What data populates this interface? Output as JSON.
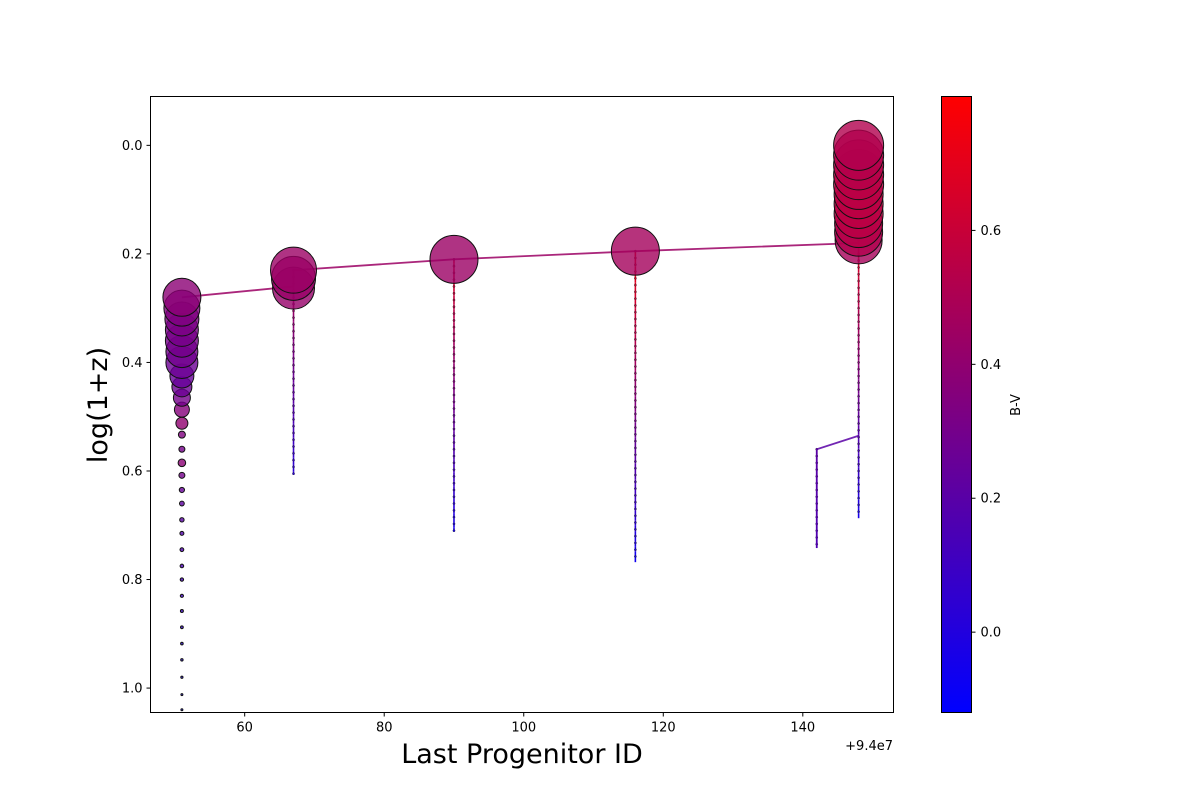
{
  "chart_data": {
    "type": "scatter",
    "xlabel": "Last Progenitor ID",
    "ylabel": "log(1+z)",
    "x_offset_label": "+9.4e7",
    "xlim": [
      46.5,
      153
    ],
    "ylim": [
      1.045,
      -0.09
    ],
    "y_inverted": true,
    "xticks": [
      60,
      80,
      100,
      120,
      140
    ],
    "yticks": [
      0.0,
      0.2,
      0.4,
      0.6,
      0.8,
      1.0
    ],
    "xtick_labels": [
      "60",
      "80",
      "100",
      "120",
      "140"
    ],
    "ytick_labels": [
      "0.0",
      "0.2",
      "0.4",
      "0.6",
      "0.8",
      "1.0"
    ],
    "grid": false,
    "colorbar": {
      "label": "B-V",
      "range": [
        -0.12,
        0.8
      ],
      "ticks": [
        0.0,
        0.2,
        0.4,
        0.6
      ],
      "tick_labels": [
        "0.0",
        "0.2",
        "0.4",
        "0.6"
      ],
      "colors": [
        "#0000ff",
        "#ff0000"
      ]
    },
    "branches": [
      {
        "x": 51,
        "points": [
          {
            "y": 0.28,
            "bv": 0.38,
            "size": 19
          },
          {
            "y": 0.3,
            "bv": 0.34,
            "size": 18
          },
          {
            "y": 0.32,
            "bv": 0.32,
            "size": 17
          },
          {
            "y": 0.34,
            "bv": 0.31,
            "size": 16.5
          },
          {
            "y": 0.36,
            "bv": 0.3,
            "size": 16.5
          },
          {
            "y": 0.38,
            "bv": 0.29,
            "size": 16
          },
          {
            "y": 0.4,
            "bv": 0.27,
            "size": 16
          },
          {
            "y": 0.425,
            "bv": 0.25,
            "size": 12
          },
          {
            "y": 0.445,
            "bv": 0.27,
            "size": 10
          },
          {
            "y": 0.465,
            "bv": 0.3,
            "size": 8.5
          },
          {
            "y": 0.487,
            "bv": 0.36,
            "size": 7.5
          },
          {
            "y": 0.512,
            "bv": 0.4,
            "size": 6
          },
          {
            "y": 0.533,
            "bv": 0.34,
            "size": 3.5
          },
          {
            "y": 0.56,
            "bv": 0.3,
            "size": 3
          },
          {
            "y": 0.585,
            "bv": 0.38,
            "size": 3.8
          },
          {
            "y": 0.608,
            "bv": 0.3,
            "size": 3
          },
          {
            "y": 0.635,
            "bv": 0.25,
            "size": 2.6
          },
          {
            "y": 0.66,
            "bv": 0.22,
            "size": 2.4
          },
          {
            "y": 0.69,
            "bv": 0.2,
            "size": 2.2
          },
          {
            "y": 0.715,
            "bv": 0.18,
            "size": 2
          },
          {
            "y": 0.745,
            "bv": 0.16,
            "size": 1.9
          },
          {
            "y": 0.775,
            "bv": 0.14,
            "size": 1.8
          },
          {
            "y": 0.8,
            "bv": 0.12,
            "size": 1.7
          },
          {
            "y": 0.83,
            "bv": 0.1,
            "size": 1.6
          },
          {
            "y": 0.858,
            "bv": 0.08,
            "size": 1.5
          },
          {
            "y": 0.888,
            "bv": 0.05,
            "size": 1.4
          },
          {
            "y": 0.918,
            "bv": 0.02,
            "size": 1.3
          },
          {
            "y": 0.948,
            "bv": 0.0,
            "size": 1.2
          },
          {
            "y": 0.98,
            "bv": -0.03,
            "size": 1.1
          },
          {
            "y": 1.012,
            "bv": -0.06,
            "size": 1.0
          },
          {
            "y": 1.04,
            "bv": -0.09,
            "size": 1.0
          }
        ]
      },
      {
        "x": 67,
        "y_top": 0.23,
        "y_bottom": 0.607,
        "bv_top": 0.52,
        "bv_bottom": 0.02,
        "big": [
          {
            "y": 0.23,
            "bv": 0.44,
            "size": 23
          },
          {
            "y": 0.245,
            "bv": 0.43,
            "size": 22
          },
          {
            "y": 0.263,
            "bv": 0.42,
            "size": 21
          }
        ]
      },
      {
        "x": 90,
        "y_top": 0.21,
        "y_bottom": 0.712,
        "bv_top": 0.68,
        "bv_bottom": -0.05,
        "big": [
          {
            "y": 0.21,
            "bv": 0.44,
            "size": 24
          }
        ]
      },
      {
        "x": 116,
        "y_top": 0.195,
        "y_bottom": 0.768,
        "bv_top": 0.76,
        "bv_bottom": -0.08,
        "big": [
          {
            "y": 0.195,
            "bv": 0.47,
            "size": 24
          }
        ]
      },
      {
        "x": 142,
        "y_top": 0.56,
        "y_bottom": 0.742,
        "bv_top": 0.22,
        "bv_bottom": -0.06,
        "big": []
      },
      {
        "x": 148,
        "y_top": 0.175,
        "y_bottom": 0.687,
        "bv_top": 0.7,
        "bv_bottom": -0.05,
        "big": [
          {
            "y": 0.0,
            "bv": 0.52,
            "size": 25
          },
          {
            "y": 0.018,
            "bv": 0.53,
            "size": 25
          },
          {
            "y": 0.036,
            "bv": 0.54,
            "size": 25
          },
          {
            "y": 0.054,
            "bv": 0.55,
            "size": 25
          },
          {
            "y": 0.072,
            "bv": 0.55,
            "size": 25
          },
          {
            "y": 0.09,
            "bv": 0.56,
            "size": 24.5
          },
          {
            "y": 0.108,
            "bv": 0.56,
            "size": 24.5
          },
          {
            "y": 0.126,
            "bv": 0.55,
            "size": 24.5
          },
          {
            "y": 0.144,
            "bv": 0.54,
            "size": 24
          },
          {
            "y": 0.16,
            "bv": 0.52,
            "size": 24
          },
          {
            "y": 0.175,
            "bv": 0.48,
            "size": 23.5
          }
        ]
      }
    ],
    "links": [
      {
        "points": [
          [
            51,
            0.28
          ],
          [
            67,
            0.26
          ],
          [
            67,
            0.23
          ],
          [
            90,
            0.21
          ],
          [
            116,
            0.195
          ],
          [
            148,
            0.18
          ]
        ],
        "bv": 0.44
      },
      {
        "points": [
          [
            142,
            0.742
          ],
          [
            142,
            0.56
          ],
          [
            148,
            0.535
          ]
        ],
        "bv": 0.2
      }
    ]
  }
}
